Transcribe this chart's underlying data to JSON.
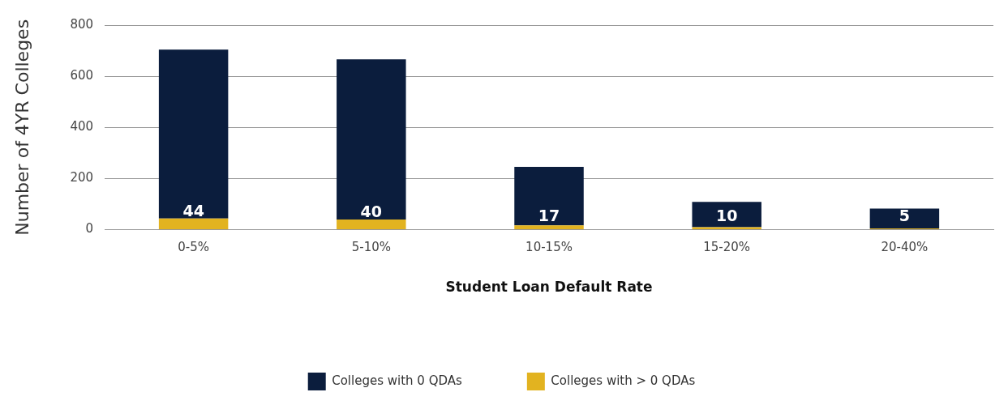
{
  "chart_data": {
    "type": "bar",
    "xlabel": "Student Loan Default Rate",
    "ylabel": "Number of 4YR Colleges",
    "categories": [
      "0-5%",
      "5-10%",
      "10-15%",
      "15-20%",
      "20-40%"
    ],
    "stacked": true,
    "series": [
      {
        "name": "Colleges with > 0 QDAs",
        "color": "#e2b320",
        "values": [
          44,
          40,
          17,
          10,
          5
        ],
        "value_labels": [
          "44",
          "40",
          "17",
          "10",
          "5"
        ]
      },
      {
        "name": "Colleges with 0 QDAs",
        "color": "#0b1d3d",
        "values": [
          660,
          626,
          229,
          99,
          78
        ]
      }
    ],
    "ylim": [
      0,
      800
    ],
    "yticks": [
      0,
      200,
      400,
      600,
      800
    ],
    "grid": "y",
    "legend": "bottom"
  }
}
